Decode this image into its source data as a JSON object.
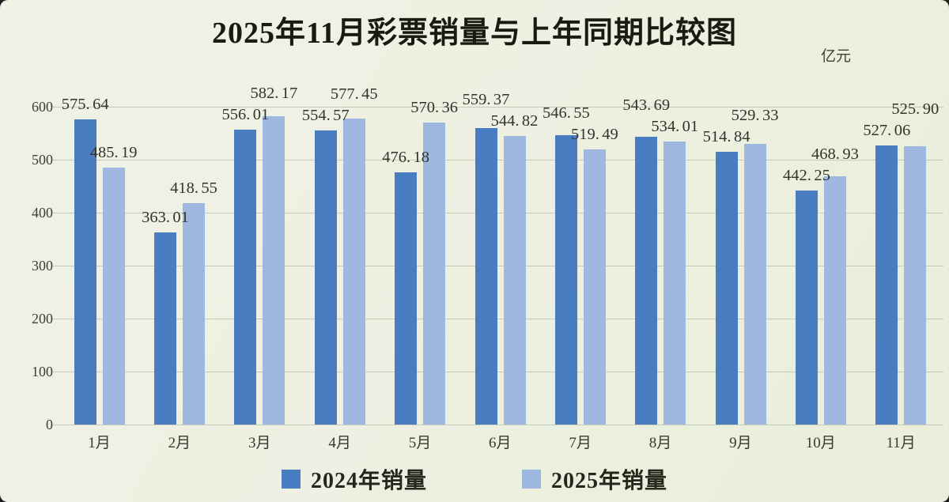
{
  "title": "2025年11月彩票销量与上年同期比较图",
  "unit_label": "亿元",
  "colors": {
    "background": "#edf0e1",
    "series_2024": "#4a7cc2",
    "series_2025": "#9fb8e0",
    "grid": "#c7c9b8",
    "text": "#31342a"
  },
  "legend": {
    "entries": [
      {
        "label": "2024年销量",
        "color": "#4a7cc2"
      },
      {
        "label": "2025年销量",
        "color": "#9fb8e0"
      }
    ]
  },
  "chart_data": {
    "type": "bar",
    "title": "2025年11月彩票销量与上年同期比较图",
    "ylabel": "亿元",
    "categories": [
      "1月",
      "2月",
      "3月",
      "4月",
      "5月",
      "6月",
      "7月",
      "8月",
      "9月",
      "10月",
      "11月"
    ],
    "series": [
      {
        "name": "2024年销量",
        "color": "#4a7cc2",
        "values": [
          575.64,
          363.01,
          556.01,
          554.57,
          476.18,
          559.37,
          546.55,
          543.69,
          514.84,
          442.25,
          527.06
        ]
      },
      {
        "name": "2025年销量",
        "color": "#9fb8e0",
        "values": [
          485.19,
          418.55,
          582.17,
          577.45,
          570.36,
          544.82,
          519.49,
          534.01,
          529.33,
          468.93,
          525.9
        ]
      }
    ],
    "ylim": [
      0,
      600
    ],
    "yticks": [
      0,
      100,
      200,
      300,
      400,
      500,
      600
    ],
    "grid": true,
    "value_labels": true,
    "legend_position": "bottom"
  }
}
